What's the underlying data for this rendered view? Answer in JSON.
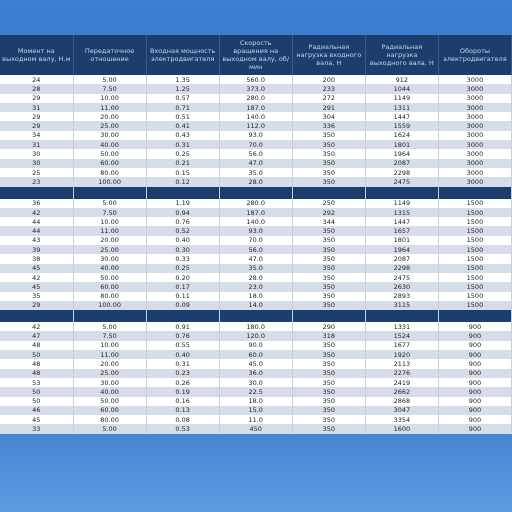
{
  "header": {
    "columns": [
      "Момент на выходном валу, Н.м",
      "Передаточное отношение",
      "Входная мощность электродвигателя",
      "Скорость вращения на выходном валу, об/мин",
      "Радиальная нагрузка входного вала, Н",
      "Радиальная нагрузка выходного вала, Н",
      "Обороты электродвигателя"
    ]
  },
  "groups": [
    {
      "rows": [
        [
          "24",
          "5.00",
          "1.35",
          "560.0",
          "200",
          "912",
          "3000"
        ],
        [
          "28",
          "7.50",
          "1.25",
          "373.0",
          "233",
          "1044",
          "3000"
        ],
        [
          "29",
          "10.00",
          "0.57",
          "280.0",
          "272",
          "1149",
          "3000"
        ],
        [
          "31",
          "11.00",
          "0.71",
          "187.0",
          "291",
          "1311",
          "3000"
        ],
        [
          "29",
          "20.00",
          "0.51",
          "140.0",
          "304",
          "1447",
          "3000"
        ],
        [
          "29",
          "25.00",
          "0.41",
          "112.0",
          "336",
          "1559",
          "3000"
        ],
        [
          "34",
          "30.00",
          "0.43",
          "93.0",
          "350",
          "1624",
          "3000"
        ],
        [
          "31",
          "40.00",
          "0.31",
          "70.0",
          "350",
          "1801",
          "3000"
        ],
        [
          "30",
          "50.00",
          "0.25",
          "56.0",
          "350",
          "1964",
          "3000"
        ],
        [
          "30",
          "60.00",
          "0.21",
          "47.0",
          "350",
          "2087",
          "3000"
        ],
        [
          "25",
          "80.00",
          "0.15",
          "35.0",
          "350",
          "2298",
          "3000"
        ],
        [
          "23",
          "100.00",
          "0.12",
          "28.0",
          "350",
          "2475",
          "3000"
        ]
      ]
    },
    {
      "rows": [
        [
          "36",
          "5.00",
          "1.19",
          "280.0",
          "250",
          "1149",
          "1500"
        ],
        [
          "42",
          "7.50",
          "0.94",
          "187.0",
          "292",
          "1315",
          "1500"
        ],
        [
          "44",
          "10.00",
          "0.76",
          "140.0",
          "344",
          "1447",
          "1500"
        ],
        [
          "44",
          "11.00",
          "0.52",
          "93.0",
          "350",
          "1657",
          "1500"
        ],
        [
          "43",
          "20.00",
          "0.40",
          "70.0",
          "350",
          "1801",
          "1500"
        ],
        [
          "39",
          "25.00",
          "0.30",
          "56.0",
          "350",
          "1964",
          "1500"
        ],
        [
          "38",
          "30.00",
          "0.33",
          "47.0",
          "350",
          "2087",
          "1500"
        ],
        [
          "45",
          "40.00",
          "0.25",
          "35.0",
          "350",
          "2298",
          "1500"
        ],
        [
          "42",
          "50.00",
          "0.20",
          "28.0",
          "350",
          "2475",
          "1500"
        ],
        [
          "45",
          "60.00",
          "0.17",
          "23.0",
          "350",
          "2630",
          "1500"
        ],
        [
          "35",
          "80.00",
          "0.11",
          "18.0",
          "350",
          "2893",
          "1500"
        ],
        [
          "29",
          "100.00",
          "0.09",
          "14.0",
          "350",
          "3115",
          "1500"
        ]
      ]
    },
    {
      "rows": [
        [
          "42",
          "5.00",
          "0.91",
          "180.0",
          "290",
          "1331",
          "900"
        ],
        [
          "47",
          "7.50",
          "0.76",
          "120.0",
          "318",
          "1524",
          "900"
        ],
        [
          "48",
          "10.00",
          "0.55",
          "90.0",
          "350",
          "1677",
          "900"
        ],
        [
          "50",
          "11.00",
          "0.40",
          "60.0",
          "350",
          "1920",
          "900"
        ],
        [
          "48",
          "20.00",
          "0.31",
          "45.0",
          "350",
          "2113",
          "900"
        ],
        [
          "48",
          "25.00",
          "0.23",
          "36.0",
          "350",
          "2276",
          "900"
        ],
        [
          "53",
          "30.00",
          "0.26",
          "30.0",
          "350",
          "2419",
          "900"
        ],
        [
          "50",
          "40.00",
          "0.19",
          "22.5",
          "350",
          "2662",
          "900"
        ],
        [
          "50",
          "50.00",
          "0.16",
          "18.0",
          "350",
          "2868",
          "900"
        ],
        [
          "46",
          "60.00",
          "0.13",
          "15.0",
          "350",
          "3047",
          "900"
        ],
        [
          "45",
          "80.00",
          "0.08",
          "11.0",
          "350",
          "3354",
          "900"
        ],
        [
          "33",
          "5.00",
          "0.53",
          "450",
          "350",
          "1600",
          "900"
        ]
      ]
    }
  ]
}
